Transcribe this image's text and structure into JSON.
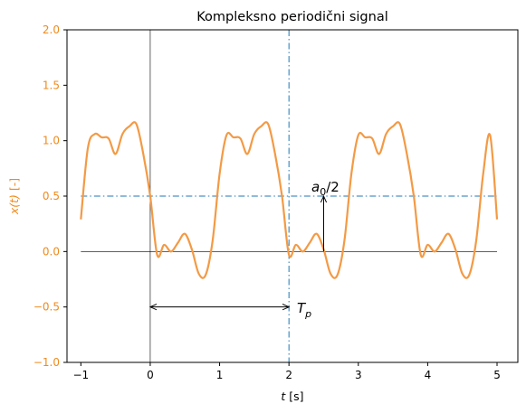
{
  "chart_data": {
    "type": "line",
    "title": "Kompleksno periodični signal",
    "xlabel": "t [s]",
    "xlabel_var": "t",
    "xlabel_unit": "[s]",
    "ylabel": "x(t) [-]",
    "ylabel_var": "x(t)",
    "ylabel_unit": "[-]",
    "xlim": [
      -1.2,
      5.3
    ],
    "ylim": [
      -1.0,
      2.0
    ],
    "xticks": [
      -1,
      0,
      1,
      2,
      3,
      4,
      5
    ],
    "xtick_labels": [
      "−1",
      "0",
      "1",
      "2",
      "3",
      "4",
      "5"
    ],
    "yticks": [
      -1.0,
      -0.5,
      0.0,
      0.5,
      1.0,
      1.5,
      2.0
    ],
    "ytick_labels": [
      "−1.0",
      "−0.5",
      "0.0",
      "0.5",
      "1.0",
      "1.5",
      "2.0"
    ],
    "grid": false,
    "colors": {
      "signal": "#f39a45",
      "ylabel": "#f08a1c",
      "reference": "#1f77b4",
      "axes": "#000000"
    },
    "series": [
      {
        "x": [
          -1.0,
          -0.9,
          -0.8,
          -0.7,
          -0.6,
          -0.5,
          -0.4,
          -0.3,
          -0.2,
          -0.1,
          0.0,
          0.1,
          0.2,
          0.3,
          0.4,
          0.5,
          0.6,
          0.7,
          0.8,
          0.9,
          1.0,
          1.1,
          1.2,
          1.3,
          1.4,
          1.5,
          1.6,
          1.7,
          1.8,
          1.9,
          2.0,
          2.1,
          2.2,
          2.3,
          2.4,
          2.5,
          2.6,
          2.7,
          2.8,
          2.9,
          3.0,
          3.1,
          3.2,
          3.3,
          3.4,
          3.5,
          3.6,
          3.7,
          3.8,
          3.9,
          4.0,
          4.1,
          4.2,
          4.3,
          4.4,
          4.5,
          4.6,
          4.7,
          4.8,
          4.9,
          5.0
        ],
        "y": [
          0.29,
          0.93,
          1.06,
          1.03,
          1.02,
          0.88,
          1.06,
          1.13,
          1.15,
          0.88,
          0.5,
          -0.03,
          0.06,
          0.0,
          0.08,
          0.16,
          0.02,
          -0.2,
          -0.21,
          0.1,
          0.7,
          1.05,
          1.03,
          1.02,
          0.88,
          1.06,
          1.13,
          1.15,
          0.88,
          0.5,
          -0.03,
          0.06,
          0.0,
          0.08,
          0.16,
          0.02,
          -0.2,
          -0.21,
          0.1,
          0.7,
          1.05,
          1.03,
          1.02,
          0.88,
          1.06,
          1.13,
          1.15,
          0.88,
          0.5,
          -0.03,
          0.06,
          0.0,
          0.08,
          0.16,
          0.02,
          -0.2,
          -0.21,
          0.1,
          0.7,
          1.05,
          0.29
        ]
      }
    ],
    "reference_lines": {
      "mean_level": 0.5,
      "mean_x_range": [
        -1,
        5
      ],
      "zero_level": 0.0,
      "zero_x_range": [
        -1,
        5
      ],
      "vline_dashdot_x": 2,
      "vline_solid_x": 0
    },
    "annotations": [
      {
        "label": "T_p",
        "from": [
          0,
          -0.5
        ],
        "to": [
          2,
          -0.5
        ]
      },
      {
        "label": "a_0/2",
        "from": [
          2.5,
          0.0
        ],
        "to": [
          2.5,
          0.5
        ]
      }
    ],
    "annotation_text": {
      "period_main": "T",
      "period_sub": "p",
      "mean_main": "a",
      "mean_sub": "0",
      "mean_rest": "/2"
    }
  }
}
